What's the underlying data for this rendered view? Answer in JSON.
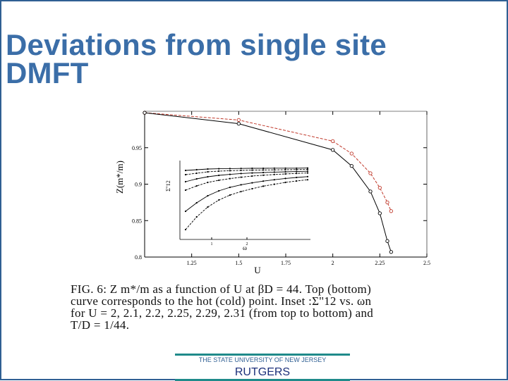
{
  "slide": {
    "title_line1": "Deviations from single site",
    "title_line2": "DMFT",
    "caption": "FIG. 6:  Z m*/m  as a function of U at βD = 44.  Top (bottom)\ncurve corresponds to the hot (cold) point.  Inset :Σ''12 vs. ωn\nfor U = 2, 2.1, 2.2, 2.25, 2.29, 2.31 (from top to bottom) and\nT/D = 1/44.",
    "footer_university": "THE STATE UNIVERSITY OF NEW JERSEY",
    "footer_name": "RUTGERS"
  },
  "colors": {
    "title": "#3b6ea8",
    "hot_series": "#c0392b",
    "cold_series": "#000000",
    "footer_rule": "#1f8a8a",
    "frame": "#2f5f93"
  },
  "chart_data": {
    "type": "line",
    "title": "",
    "xlabel": "U",
    "ylabel": "Z(m*/m)",
    "xlim": [
      1.0,
      2.5
    ],
    "ylim": [
      0.8,
      1.0
    ],
    "x_ticks": [
      "1.25",
      "1.5",
      "1.75",
      "2",
      "2.25",
      "2.5"
    ],
    "y_ticks": [
      "0.95",
      "0.9",
      "0.85",
      "0.8"
    ],
    "grid": false,
    "series": [
      {
        "label": "hot point (top)",
        "x": [
          1.0,
          1.5,
          2.0,
          2.1,
          2.2,
          2.25,
          2.29,
          2.31
        ],
        "y": [
          0.998,
          0.988,
          0.959,
          0.942,
          0.915,
          0.895,
          0.875,
          0.863
        ]
      },
      {
        "label": "cold point (bottom)",
        "x": [
          1.0,
          1.5,
          2.0,
          2.1,
          2.2,
          2.25,
          2.29,
          2.31
        ],
        "y": [
          0.998,
          0.983,
          0.947,
          0.925,
          0.89,
          0.86,
          0.822,
          0.807
        ]
      }
    ],
    "inset": {
      "xlabel": "ω",
      "ylabel": "Σ''12",
      "x_ticks": [
        "1",
        "2"
      ],
      "series": [
        {
          "U": "2",
          "y": [
            0.04,
            0.035,
            0.03,
            0.028,
            0.027,
            0.026,
            0.025,
            0.025,
            0.024,
            0.024,
            0.024,
            0.023
          ]
        },
        {
          "U": "2.1",
          "y": [
            0.07,
            0.06,
            0.05,
            0.045,
            0.042,
            0.04,
            0.038,
            0.037,
            0.036,
            0.035,
            0.034,
            0.033
          ]
        },
        {
          "U": "2.2",
          "y": [
            0.12,
            0.1,
            0.085,
            0.075,
            0.068,
            0.062,
            0.058,
            0.055,
            0.052,
            0.05,
            0.048,
            0.046
          ]
        },
        {
          "U": "2.25",
          "y": [
            0.18,
            0.15,
            0.125,
            0.11,
            0.098,
            0.088,
            0.08,
            0.074,
            0.069,
            0.065,
            0.061,
            0.058
          ]
        },
        {
          "U": "2.29",
          "y": [
            0.33,
            0.27,
            0.22,
            0.185,
            0.16,
            0.142,
            0.128,
            0.116,
            0.106,
            0.097,
            0.09,
            0.084
          ]
        },
        {
          "U": "2.31",
          "y": [
            0.46,
            0.37,
            0.3,
            0.25,
            0.215,
            0.19,
            0.17,
            0.152,
            0.138,
            0.125,
            0.115,
            0.106
          ]
        }
      ]
    }
  }
}
